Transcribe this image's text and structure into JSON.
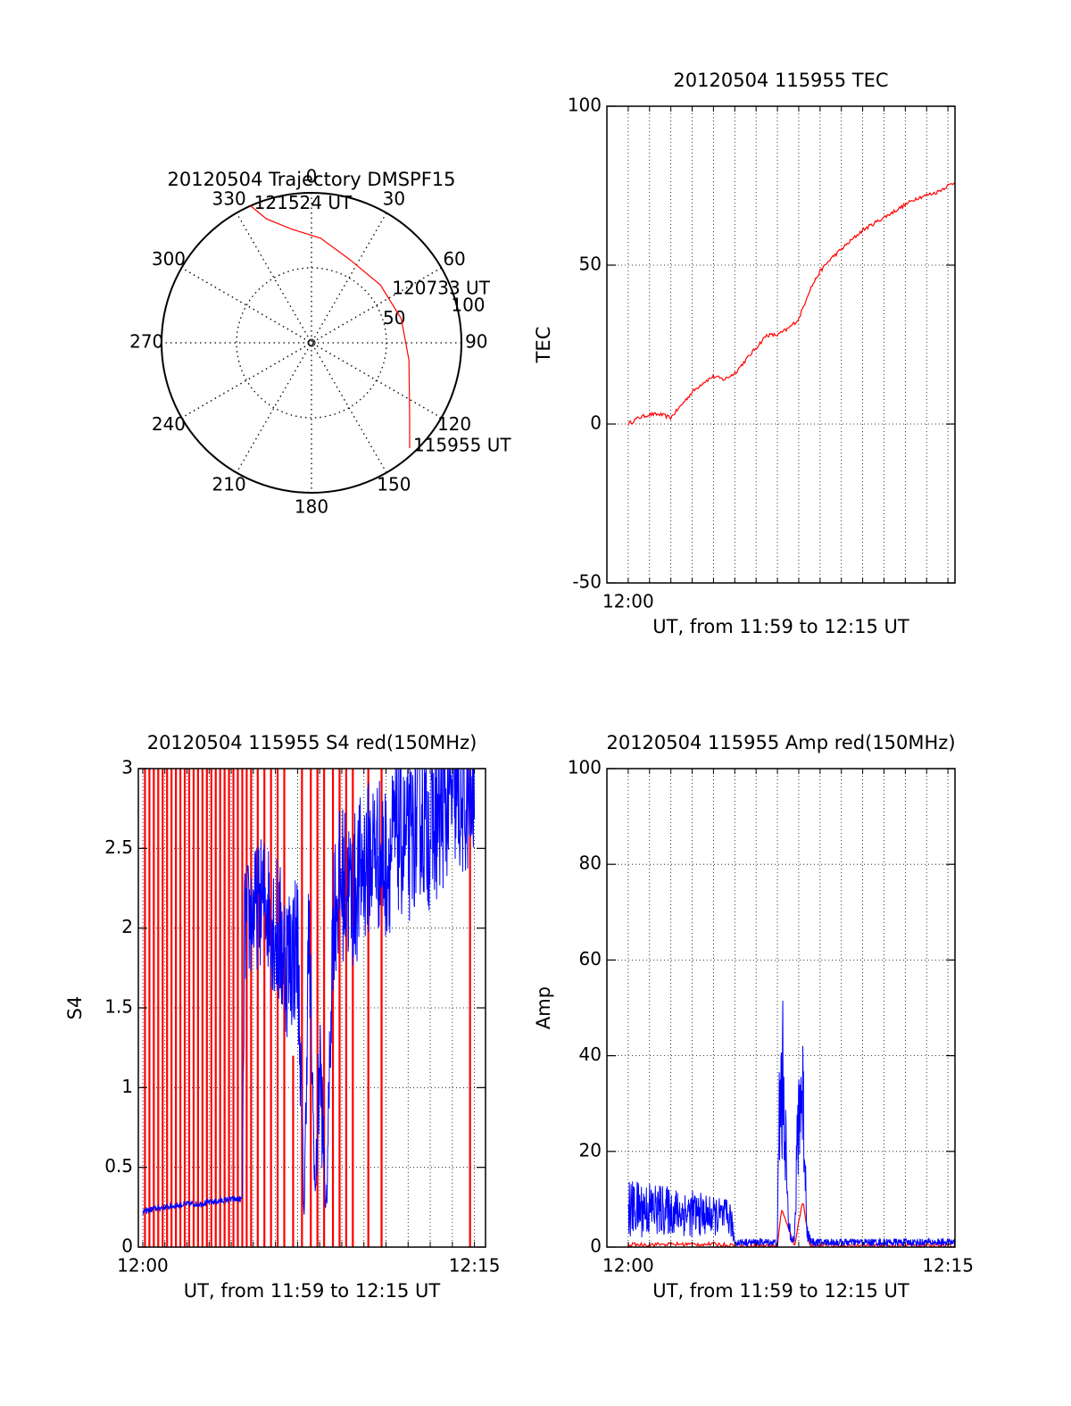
{
  "colors": {
    "red": "#ff0000",
    "blue": "#0000ff",
    "axis": "#000000",
    "grid": "#000000",
    "background": "#ffffff"
  },
  "chart_data": [
    {
      "type": "polar",
      "title": "20120504 Trajectory DMSPF15",
      "azimuth_labels": [
        "0",
        "30",
        "60",
        "90",
        "120",
        "150",
        "180",
        "210",
        "240",
        "270",
        "300",
        "330"
      ],
      "ring_labels": [
        "50",
        "100"
      ],
      "series": [
        {
          "color": "red",
          "points": [
            {
              "az": 336,
              "r": 100
            },
            {
              "az": 340,
              "r": 88
            },
            {
              "az": 350,
              "r": 77
            },
            {
              "az": 5,
              "r": 70
            },
            {
              "az": 25,
              "r": 61
            },
            {
              "az": 50,
              "r": 60
            },
            {
              "az": 75,
              "r": 62
            },
            {
              "az": 100,
              "r": 66
            },
            {
              "az": 115,
              "r": 72
            },
            {
              "az": 127,
              "r": 82
            },
            {
              "az": 137,
              "r": 96
            }
          ]
        }
      ],
      "annotations": [
        {
          "text": "121524 UT",
          "az": 336,
          "r": 100
        },
        {
          "text": "120733 UT",
          "az": 56,
          "r": 62
        },
        {
          "text": "115955 UT",
          "az": 137,
          "r": 96
        }
      ]
    },
    {
      "type": "line",
      "title": "20120504 115955 TEC",
      "xlabel": "UT, from 11:59 to 12:15 UT",
      "ylabel": "TEC",
      "xlim": [
        -1,
        15.33
      ],
      "ylim": [
        -50,
        100
      ],
      "yticks": [
        "-50",
        "0",
        "50",
        "100"
      ],
      "xticks": [
        {
          "value": 0,
          "label": "12:00"
        }
      ],
      "grid": true,
      "series": [
        {
          "color": "red",
          "x": [
            0,
            0.5,
            1,
            1.5,
            2,
            2.5,
            3,
            3.5,
            4,
            4.5,
            5,
            5.5,
            6,
            6.5,
            7,
            7.5,
            8,
            8.5,
            9,
            9.5,
            10,
            10.5,
            11,
            11.5,
            12,
            12.5,
            13,
            13.5,
            14,
            14.5,
            15,
            15.33
          ],
          "y": [
            0,
            2,
            3,
            3,
            2,
            6,
            10,
            13,
            15,
            14,
            16,
            20,
            24,
            28,
            28,
            30,
            33,
            42,
            48,
            52,
            55,
            58,
            61,
            63,
            65,
            67,
            69,
            71,
            72,
            73,
            75,
            76
          ]
        }
      ]
    },
    {
      "type": "line",
      "title": "20120504 115955 S4 red(150MHz)",
      "xlabel": "UT, from 11:59 to 12:15 UT",
      "ylabel": "S4",
      "xlim": [
        -0.2,
        15.5
      ],
      "ylim": [
        0,
        3
      ],
      "yticks": [
        "0",
        "0.5",
        "1",
        "1.5",
        "2",
        "2.5",
        "3"
      ],
      "xticks": [
        {
          "value": 0,
          "label": "12:00"
        },
        {
          "value": 15,
          "label": "12:15"
        }
      ],
      "grid": true,
      "series": [
        {
          "color": "red",
          "style": "spikes",
          "x": [
            0.1,
            0.3,
            0.5,
            0.7,
            0.9,
            1.1,
            1.3,
            1.5,
            1.7,
            1.9,
            2.1,
            2.3,
            2.5,
            2.7,
            2.9,
            3.1,
            3.3,
            3.5,
            3.7,
            3.9,
            4.1,
            4.3,
            4.5,
            4.7,
            4.9,
            5.2,
            5.5,
            5.8,
            6.1,
            6.4,
            6.8,
            7.2,
            7.6,
            7.9,
            8.2,
            8.6,
            8.9,
            9.2,
            9.5,
            10.2,
            10.8,
            14.8
          ],
          "y": [
            3,
            3,
            3,
            3,
            3,
            3,
            3,
            3,
            3,
            3,
            3,
            3,
            3,
            3,
            3,
            3,
            3,
            3,
            3,
            3,
            3,
            3,
            3,
            3,
            3,
            3,
            3,
            3,
            3,
            3,
            1.2,
            3,
            3,
            3,
            3,
            3,
            3,
            3,
            3,
            3,
            3,
            3
          ]
        },
        {
          "color": "blue",
          "style": "noisy",
          "x": [
            0,
            0.5,
            1,
            1.5,
            2,
            2.5,
            3,
            3.5,
            4,
            4.5,
            4.6,
            5,
            5.5,
            6,
            6.5,
            7,
            7.3,
            7.5,
            7.8,
            8,
            8.3,
            8.6,
            9,
            9.5,
            10,
            10.5,
            11,
            11.5,
            12,
            12.5,
            13,
            13.5,
            14,
            14.5,
            15
          ],
          "y": [
            0.22,
            0.24,
            0.25,
            0.26,
            0.27,
            0.27,
            0.28,
            0.29,
            0.3,
            0.3,
            2.0,
            2.1,
            2.2,
            2.0,
            1.8,
            1.9,
            0.2,
            2.0,
            0.3,
            1.2,
            0.2,
            2.1,
            2.3,
            2.2,
            2.4,
            2.5,
            2.4,
            2.6,
            2.5,
            2.7,
            2.6,
            2.7,
            2.8,
            2.7,
            2.8
          ],
          "spread": [
            0.02,
            0.02,
            0.02,
            0.02,
            0.02,
            0.02,
            0.02,
            0.02,
            0.02,
            0.02,
            0.4,
            0.4,
            0.4,
            0.5,
            0.5,
            0.5,
            0.1,
            0.5,
            0.1,
            0.5,
            0.1,
            0.5,
            0.5,
            0.5,
            0.5,
            0.5,
            0.5,
            0.5,
            0.5,
            0.5,
            0.5,
            0.5,
            0.4,
            0.4,
            0.4
          ]
        }
      ]
    },
    {
      "type": "line",
      "title": "20120504 115955 Amp red(150MHz)",
      "xlabel": "UT, from 11:59 to 12:15 UT",
      "ylabel": "Amp",
      "xlim": [
        -1,
        15.33
      ],
      "ylim": [
        0,
        100
      ],
      "yticks": [
        "0",
        "20",
        "40",
        "60",
        "80",
        "100"
      ],
      "xticks": [
        {
          "value": 0,
          "label": "12:00"
        },
        {
          "value": 15,
          "label": "12:15"
        }
      ],
      "grid": true,
      "series": [
        {
          "color": "red",
          "x": [
            0,
            2,
            4,
            5,
            6,
            7,
            7.2,
            7.5,
            7.8,
            8.2,
            8.5,
            9,
            10,
            12,
            15.33
          ],
          "y": [
            0.5,
            0.6,
            0.6,
            0.4,
            0.3,
            0.3,
            8,
            4,
            0.3,
            10,
            0.3,
            0.3,
            0.3,
            0.3,
            0.3
          ]
        },
        {
          "color": "blue",
          "style": "noisy",
          "x": [
            0,
            1,
            2,
            3,
            4,
            4.8,
            5,
            6,
            7,
            7.1,
            7.3,
            7.5,
            7.8,
            8,
            8.2,
            8.4,
            8.6,
            9,
            10,
            11,
            12,
            13,
            14,
            15.33
          ],
          "y": [
            8,
            8,
            7.5,
            7,
            6.5,
            6,
            1,
            1,
            1,
            30,
            35,
            5,
            1,
            30,
            32,
            3,
            1,
            1,
            1,
            1,
            1,
            1,
            1,
            1
          ],
          "spread": [
            6,
            6,
            5,
            5,
            4,
            4,
            0.8,
            0.8,
            0.8,
            20,
            18,
            3,
            0.8,
            15,
            15,
            2,
            0.8,
            0.8,
            0.8,
            0.8,
            0.8,
            0.8,
            0.8,
            0.8
          ]
        }
      ]
    }
  ]
}
